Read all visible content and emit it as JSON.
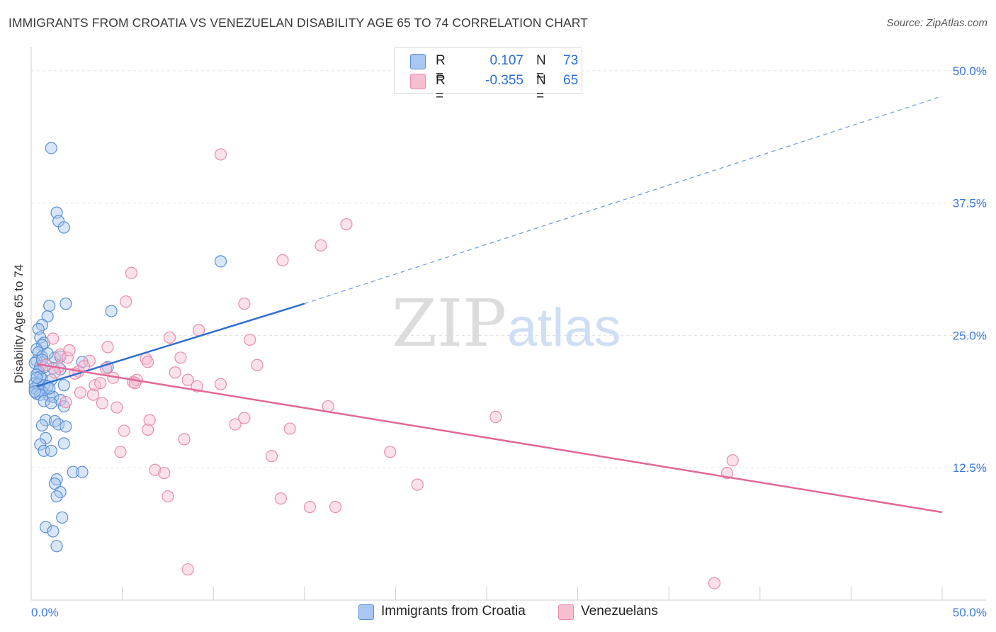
{
  "title": "IMMIGRANTS FROM CROATIA VS VENEZUELAN DISABILITY AGE 65 TO 74 CORRELATION CHART",
  "source": "Source: ZipAtlas.com",
  "watermark": {
    "zip": "ZIP",
    "atlas": "atlas"
  },
  "colors": {
    "blue_fill": "#a9c7f0",
    "blue_stroke": "#5b8fd6",
    "blue_line": "#2f6fd0",
    "pink_fill": "#f6bfd0",
    "pink_stroke": "#e98bab",
    "pink_line": "#e2679a",
    "tick_label": "#3b78d8",
    "grid": "#e2e2e2"
  },
  "legend": {
    "r_label": "R =",
    "n_label": "N =",
    "series": [
      {
        "r": "0.107",
        "n": "73"
      },
      {
        "r": "-0.355",
        "n": "65"
      }
    ]
  },
  "bottom_legend": [
    "Immigrants from Croatia",
    "Venezuelans"
  ],
  "chart_data": {
    "type": "scatter",
    "title": "IMMIGRANTS FROM CROATIA VS VENEZUELAN DISABILITY AGE 65 TO 74 CORRELATION CHART",
    "xlabel": "",
    "ylabel": "Disability Age 65 to 74",
    "xlim": [
      0,
      50
    ],
    "ylim": [
      0,
      52
    ],
    "x_tick_labels": [
      "0.0%",
      "50.0%"
    ],
    "y_ticks": [
      12.5,
      25.0,
      37.5,
      50.0
    ],
    "y_tick_labels": [
      "12.5%",
      "25.0%",
      "37.5%",
      "50.0%"
    ],
    "grid": true,
    "legend_position": "top-center",
    "series": [
      {
        "name": "Immigrants from Croatia",
        "r": 0.107,
        "n": 73,
        "trend": {
          "x0": 0.3,
          "y0": 20.2,
          "x1": 15.0,
          "y1": 28.0,
          "dashed_to_x": 50,
          "dashed_to_y": 47.6
        },
        "points": [
          [
            1.1,
            42.7
          ],
          [
            1.4,
            36.6
          ],
          [
            1.5,
            35.8
          ],
          [
            1.8,
            35.2
          ],
          [
            10.4,
            32.0
          ],
          [
            1.0,
            27.8
          ],
          [
            1.9,
            28.0
          ],
          [
            4.4,
            27.3
          ],
          [
            0.9,
            26.8
          ],
          [
            0.6,
            26.0
          ],
          [
            0.4,
            25.6
          ],
          [
            0.5,
            24.8
          ],
          [
            0.7,
            24.3
          ],
          [
            0.6,
            24.1
          ],
          [
            0.3,
            23.7
          ],
          [
            0.4,
            23.4
          ],
          [
            0.6,
            23.0
          ],
          [
            1.3,
            22.9
          ],
          [
            0.3,
            22.6
          ],
          [
            0.2,
            22.4
          ],
          [
            0.5,
            22.1
          ],
          [
            0.7,
            22.0
          ],
          [
            1.2,
            21.9
          ],
          [
            1.6,
            21.8
          ],
          [
            0.4,
            21.6
          ],
          [
            0.3,
            21.3
          ],
          [
            0.5,
            21.1
          ],
          [
            0.6,
            20.9
          ],
          [
            1.1,
            20.8
          ],
          [
            0.2,
            20.5
          ],
          [
            0.4,
            20.4
          ],
          [
            0.7,
            20.3
          ],
          [
            0.9,
            20.2
          ],
          [
            1.8,
            20.3
          ],
          [
            0.2,
            20.0
          ],
          [
            0.4,
            19.8
          ],
          [
            0.6,
            19.7
          ],
          [
            0.3,
            19.5
          ],
          [
            0.5,
            19.4
          ],
          [
            1.0,
            19.3
          ],
          [
            1.2,
            19.2
          ],
          [
            1.6,
            18.9
          ],
          [
            0.7,
            18.8
          ],
          [
            1.1,
            18.6
          ],
          [
            1.8,
            18.3
          ],
          [
            4.2,
            22.0
          ],
          [
            0.8,
            17.0
          ],
          [
            1.3,
            16.9
          ],
          [
            1.5,
            16.6
          ],
          [
            0.6,
            16.5
          ],
          [
            1.9,
            16.4
          ],
          [
            0.8,
            15.3
          ],
          [
            1.8,
            14.8
          ],
          [
            0.5,
            14.7
          ],
          [
            0.7,
            14.1
          ],
          [
            1.1,
            14.1
          ],
          [
            2.3,
            12.1
          ],
          [
            2.8,
            12.1
          ],
          [
            1.4,
            11.4
          ],
          [
            1.3,
            11.0
          ],
          [
            1.6,
            10.2
          ],
          [
            1.4,
            9.8
          ],
          [
            1.7,
            7.8
          ],
          [
            0.8,
            6.9
          ],
          [
            1.2,
            6.5
          ],
          [
            1.4,
            5.1
          ],
          [
            2.8,
            22.5
          ],
          [
            0.9,
            23.3
          ],
          [
            0.3,
            21.0
          ],
          [
            0.2,
            19.7
          ],
          [
            1.0,
            20.0
          ],
          [
            0.6,
            22.7
          ],
          [
            1.6,
            23.0
          ]
        ]
      },
      {
        "name": "Venezuelans",
        "r": -0.355,
        "n": 65,
        "trend": {
          "x0": 0.3,
          "y0": 22.3,
          "x1": 50.0,
          "y1": 8.3
        },
        "points": [
          [
            10.4,
            42.1
          ],
          [
            17.3,
            35.5
          ],
          [
            15.9,
            33.5
          ],
          [
            13.8,
            32.1
          ],
          [
            5.5,
            30.9
          ],
          [
            5.2,
            28.2
          ],
          [
            11.7,
            28.0
          ],
          [
            9.2,
            25.5
          ],
          [
            7.6,
            24.8
          ],
          [
            12.0,
            24.6
          ],
          [
            4.2,
            23.9
          ],
          [
            1.6,
            23.2
          ],
          [
            2.0,
            22.9
          ],
          [
            3.2,
            22.6
          ],
          [
            6.3,
            22.8
          ],
          [
            6.4,
            22.5
          ],
          [
            8.2,
            22.9
          ],
          [
            12.4,
            22.2
          ],
          [
            2.9,
            22.1
          ],
          [
            4.1,
            21.9
          ],
          [
            2.6,
            21.6
          ],
          [
            7.9,
            21.5
          ],
          [
            4.5,
            21.0
          ],
          [
            5.6,
            20.6
          ],
          [
            5.8,
            20.8
          ],
          [
            8.6,
            20.8
          ],
          [
            10.4,
            20.4
          ],
          [
            3.5,
            20.3
          ],
          [
            1.5,
            22.0
          ],
          [
            2.4,
            21.4
          ],
          [
            1.3,
            21.5
          ],
          [
            3.4,
            19.4
          ],
          [
            3.9,
            18.6
          ],
          [
            1.9,
            18.7
          ],
          [
            4.7,
            18.2
          ],
          [
            6.5,
            17.0
          ],
          [
            11.7,
            17.2
          ],
          [
            11.2,
            16.6
          ],
          [
            14.2,
            16.2
          ],
          [
            16.3,
            18.3
          ],
          [
            25.5,
            17.3
          ],
          [
            5.1,
            16.0
          ],
          [
            6.4,
            16.1
          ],
          [
            8.4,
            15.2
          ],
          [
            4.9,
            14.0
          ],
          [
            13.2,
            13.6
          ],
          [
            19.7,
            14.0
          ],
          [
            6.8,
            12.3
          ],
          [
            7.3,
            12.0
          ],
          [
            21.2,
            10.9
          ],
          [
            7.5,
            9.8
          ],
          [
            13.7,
            9.6
          ],
          [
            15.3,
            8.8
          ],
          [
            16.7,
            8.8
          ],
          [
            38.5,
            13.2
          ],
          [
            38.2,
            12.0
          ],
          [
            8.6,
            2.9
          ],
          [
            37.5,
            1.6
          ],
          [
            1.2,
            24.7
          ],
          [
            2.1,
            23.6
          ],
          [
            0.8,
            22.2
          ],
          [
            3.8,
            20.5
          ],
          [
            9.1,
            20.2
          ],
          [
            2.7,
            19.6
          ],
          [
            5.7,
            20.5
          ]
        ]
      }
    ]
  }
}
